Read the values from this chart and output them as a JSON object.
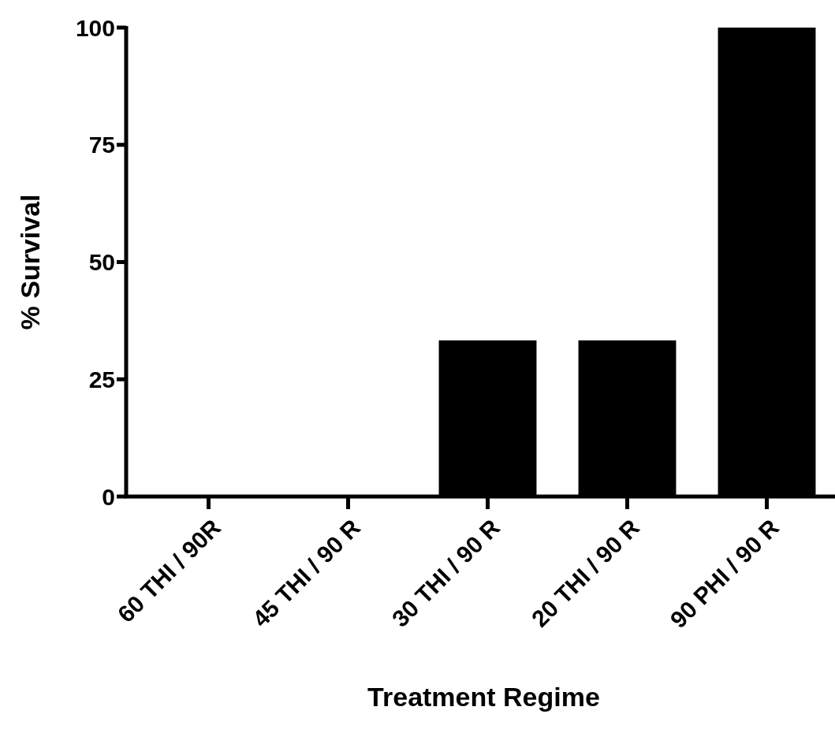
{
  "chart_data": {
    "type": "bar",
    "xlabel": "Treatment Regime",
    "ylabel": "% Survival",
    "categories": [
      "60 THI / 90R",
      "45 THI / 90 R",
      "30 THI / 90 R",
      "20 THI / 90 R",
      "90 PHI / 90 R"
    ],
    "values": [
      0,
      0,
      33.3,
      33.3,
      100
    ],
    "color": "#000000",
    "ylim": [
      0,
      100
    ],
    "yticks": [
      0,
      25,
      50,
      75,
      100
    ],
    "grid": false
  }
}
